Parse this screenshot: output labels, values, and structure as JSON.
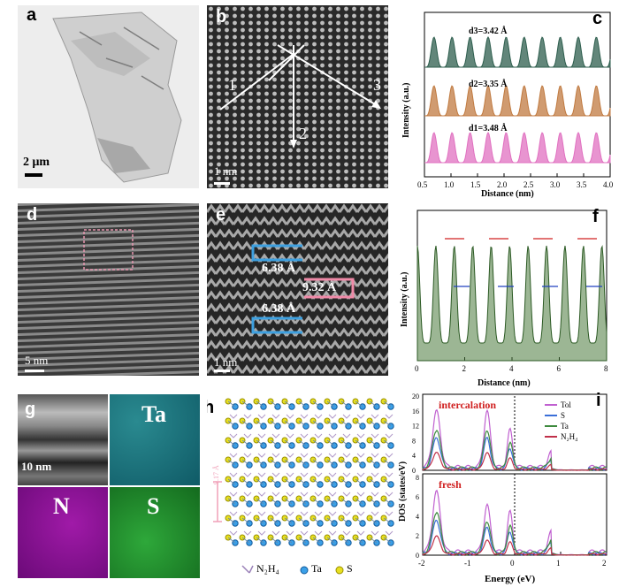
{
  "panels": {
    "a": {
      "label": "a",
      "scale": "2 μm"
    },
    "b": {
      "label": "b",
      "scale": "1 nm",
      "dir1": "1",
      "dir2": "2",
      "dir3": "3"
    },
    "c": {
      "label": "c"
    },
    "d": {
      "label": "d",
      "scale": "5 nm"
    },
    "e": {
      "label": "e",
      "scale": "1 nm",
      "spacing_top": "6.38 Å",
      "spacing_mid": "9.32 Å",
      "spacing_bot": "6.38 Å"
    },
    "f": {
      "label": "f"
    },
    "g": {
      "label": "g",
      "scale": "10 nm",
      "map_ta": "Ta",
      "map_n": "N",
      "map_s": "S"
    },
    "h": {
      "label": "h",
      "spacing": "9.17 Å",
      "legend_n2h4": "N₂H₄",
      "legend_ta": "Ta",
      "legend_s": "S"
    },
    "i": {
      "label": "i",
      "top_title": "intercalation",
      "bottom_title": "fresh",
      "legend": [
        "Tol",
        "S",
        "Ta",
        "N₂H₄"
      ]
    }
  },
  "colors": {
    "tol": "#c060d0",
    "s": "#3a6fd8",
    "ta": "#3e8a3e",
    "n2h4": "#c0304a",
    "c_top": "#2e5e4e",
    "c_mid": "#c07a40",
    "c_bot": "#e070c0",
    "f_fill": "#4a7a3c"
  },
  "chart_data": [
    {
      "type": "line",
      "title": "",
      "xlabel": "Distance (nm)",
      "ylabel": "Intensity (a.u.)",
      "xlim": [
        0.5,
        4.0
      ],
      "xticks": [
        "0.5",
        "1.0",
        "1.5",
        "2.0",
        "2.5",
        "3.0",
        "3.5",
        "4.0"
      ],
      "series": [
        {
          "name": "d3",
          "annotation": "d3=3.42 Å",
          "peak_spacing": 3.42
        },
        {
          "name": "d2",
          "annotation": "d2=3.35 Å",
          "peak_spacing": 3.35
        },
        {
          "name": "d1",
          "annotation": "d1=3.48 Å",
          "peak_spacing": 3.48
        }
      ]
    },
    {
      "type": "area",
      "title": "",
      "xlabel": "Distance (nm)",
      "ylabel": "Intensity (a.u.)",
      "xlim": [
        0,
        8
      ],
      "xticks": [
        "0",
        "2",
        "4",
        "6",
        "8"
      ]
    },
    {
      "type": "line",
      "title": "",
      "xlabel": "Energy (eV)",
      "ylabel": "DOS (states/eV)",
      "xlim": [
        -2,
        2
      ],
      "xticks": [
        "-2",
        "-1",
        "0",
        "1",
        "2"
      ],
      "top_yticks": [
        "0",
        "4",
        "8",
        "12",
        "16",
        "20"
      ],
      "top_ylim": [
        0,
        20
      ],
      "bottom_yticks": [
        "0",
        "2",
        "4",
        "6",
        "8"
      ],
      "bottom_ylim": [
        0,
        8
      ]
    }
  ]
}
